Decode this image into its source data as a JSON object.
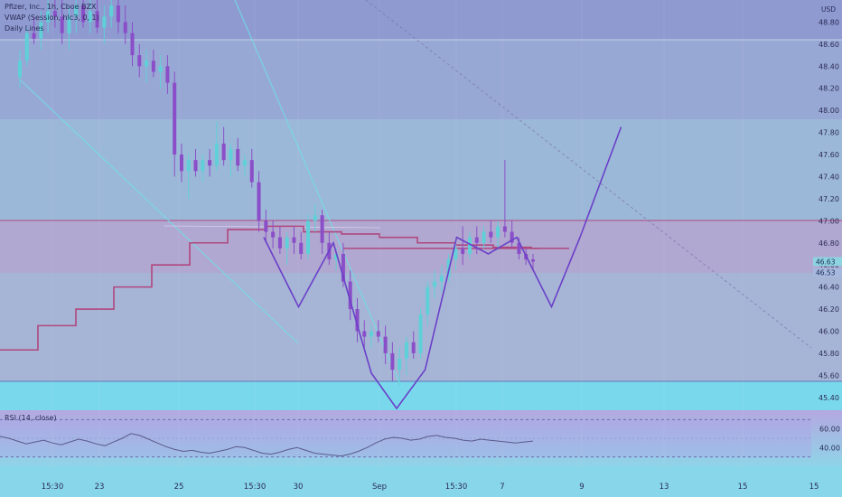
{
  "header": {
    "title_line": "Pfizer, Inc., 1h, Cboe BZX",
    "indicator_vwap": "VWAP (Session, hlc3, 0, 1)",
    "indicator_daily": "Daily Lines",
    "currency": "USD"
  },
  "rsi_panel": {
    "label": "RSI (14, close)",
    "ticks": [
      "60.00",
      "40.00"
    ]
  },
  "price_tags": [
    "46.63",
    "46.53"
  ],
  "colors": {
    "band_top": "#8e9ad0",
    "band_upper": "#98a8d4",
    "band_mid": "#9cb8d8",
    "band_lower": "#9cc2dc",
    "band_pink": "#b0a8d0",
    "rsi_bg": "#b4a8e0",
    "accent_purple": "#7c4fd0",
    "candle_up": "#5fd0d8",
    "candle_down": "#8a4ec8",
    "vwap": "#b0477e",
    "pattern_line": "#6a3fc8",
    "trend_cyan": "#6fe0e8"
  },
  "chart_data": {
    "type": "candlestick",
    "symbol": "Pfizer, Inc., 1h, Cboe BZX",
    "y_axis": {
      "ticks": [
        "48.80",
        "48.60",
        "48.40",
        "48.20",
        "48.00",
        "47.80",
        "47.60",
        "47.40",
        "47.20",
        "47.00",
        "46.80",
        "46.60",
        "46.40",
        "46.20",
        "46.00",
        "45.80",
        "45.60",
        "45.40"
      ],
      "range": [
        45.3,
        49.0
      ]
    },
    "x_axis": {
      "ticks": [
        "15:30",
        "23",
        "25",
        "15:30",
        "30",
        "Sep",
        "15:30",
        "7",
        "9",
        "13",
        "15"
      ]
    },
    "candles": [
      [
        48.3,
        48.55,
        48.2,
        48.45
      ],
      [
        48.45,
        48.75,
        48.4,
        48.7
      ],
      [
        48.7,
        48.85,
        48.6,
        48.65
      ],
      [
        48.65,
        48.9,
        48.55,
        48.8
      ],
      [
        48.8,
        49.0,
        48.7,
        48.9
      ],
      [
        48.9,
        49.0,
        48.75,
        48.85
      ],
      [
        48.85,
        49.0,
        48.6,
        48.7
      ],
      [
        48.7,
        48.95,
        48.55,
        48.85
      ],
      [
        48.85,
        49.0,
        48.7,
        48.95
      ],
      [
        48.95,
        49.0,
        48.75,
        48.8
      ],
      [
        48.8,
        49.0,
        48.7,
        48.9
      ],
      [
        48.9,
        49.0,
        48.7,
        48.75
      ],
      [
        48.75,
        48.95,
        48.6,
        48.85
      ],
      [
        48.85,
        49.0,
        48.75,
        48.95
      ],
      [
        48.95,
        49.0,
        48.7,
        48.8
      ],
      [
        48.8,
        48.95,
        48.6,
        48.7
      ],
      [
        48.7,
        48.8,
        48.4,
        48.5
      ],
      [
        48.5,
        48.6,
        48.3,
        48.4
      ],
      [
        48.4,
        48.55,
        48.25,
        48.45
      ],
      [
        48.45,
        48.55,
        48.3,
        48.35
      ],
      [
        48.35,
        48.5,
        48.2,
        48.4
      ],
      [
        48.4,
        48.5,
        48.15,
        48.25
      ],
      [
        48.25,
        48.35,
        47.4,
        47.6
      ],
      [
        47.6,
        47.7,
        47.35,
        47.45
      ],
      [
        47.45,
        47.6,
        47.2,
        47.55
      ],
      [
        47.55,
        47.65,
        47.4,
        47.45
      ],
      [
        47.45,
        47.6,
        47.35,
        47.55
      ],
      [
        47.55,
        47.65,
        47.4,
        47.5
      ],
      [
        47.5,
        47.9,
        47.45,
        47.7
      ],
      [
        47.7,
        47.85,
        47.5,
        47.55
      ],
      [
        47.55,
        47.7,
        47.4,
        47.65
      ],
      [
        47.65,
        47.75,
        47.45,
        47.5
      ],
      [
        47.5,
        47.6,
        47.4,
        47.55
      ],
      [
        47.55,
        47.65,
        47.3,
        47.35
      ],
      [
        47.35,
        47.45,
        46.9,
        47.0
      ],
      [
        47.0,
        47.1,
        46.8,
        46.9
      ],
      [
        46.9,
        47.0,
        46.75,
        46.85
      ],
      [
        46.85,
        46.95,
        46.7,
        46.75
      ],
      [
        46.75,
        46.9,
        46.6,
        46.85
      ],
      [
        46.85,
        46.95,
        46.7,
        46.8
      ],
      [
        46.8,
        46.9,
        46.65,
        46.7
      ],
      [
        46.7,
        47.05,
        46.65,
        47.0
      ],
      [
        47.0,
        47.15,
        46.9,
        47.05
      ],
      [
        47.05,
        47.1,
        46.7,
        46.8
      ],
      [
        46.8,
        46.9,
        46.6,
        46.65
      ],
      [
        46.65,
        46.75,
        46.55,
        46.7
      ],
      [
        46.7,
        46.8,
        46.4,
        46.45
      ],
      [
        46.45,
        46.55,
        46.1,
        46.2
      ],
      [
        46.2,
        46.3,
        45.9,
        46.0
      ],
      [
        46.0,
        46.1,
        45.85,
        45.95
      ],
      [
        45.95,
        46.05,
        45.85,
        46.0
      ],
      [
        46.0,
        46.1,
        45.9,
        45.95
      ],
      [
        45.95,
        46.05,
        45.7,
        45.8
      ],
      [
        45.8,
        45.9,
        45.55,
        45.65
      ],
      [
        45.65,
        45.85,
        45.5,
        45.75
      ],
      [
        45.75,
        45.95,
        45.6,
        45.9
      ],
      [
        45.9,
        46.0,
        45.75,
        45.8
      ],
      [
        45.8,
        46.2,
        45.75,
        46.15
      ],
      [
        46.15,
        46.45,
        46.05,
        46.4
      ],
      [
        46.4,
        46.55,
        46.3,
        46.45
      ],
      [
        46.45,
        46.6,
        46.35,
        46.5
      ],
      [
        46.5,
        46.7,
        46.45,
        46.65
      ],
      [
        46.65,
        46.8,
        46.55,
        46.75
      ],
      [
        46.75,
        46.95,
        46.6,
        46.7
      ],
      [
        46.7,
        46.9,
        46.65,
        46.85
      ],
      [
        46.85,
        46.95,
        46.7,
        46.8
      ],
      [
        46.8,
        46.95,
        46.75,
        46.9
      ],
      [
        46.9,
        47.0,
        46.8,
        46.85
      ],
      [
        46.85,
        47.0,
        46.75,
        46.95
      ],
      [
        46.95,
        47.55,
        46.85,
        46.9
      ],
      [
        46.9,
        47.0,
        46.75,
        46.8
      ],
      [
        46.8,
        46.85,
        46.65,
        46.7
      ],
      [
        46.7,
        46.75,
        46.6,
        46.65
      ],
      [
        46.65,
        46.7,
        46.55,
        46.63
      ]
    ],
    "vwap_levels": [
      45.83,
      46.05,
      46.2,
      46.4,
      46.6,
      46.8,
      46.92,
      46.95,
      46.9,
      46.88,
      46.85,
      46.8,
      46.78,
      46.76,
      46.75
    ],
    "pattern_points": [
      [
        0,
        46.85
      ],
      [
        0.55,
        46.22
      ],
      [
        1.1,
        46.8
      ],
      [
        1.7,
        45.62
      ],
      [
        2.1,
        45.3
      ],
      [
        2.55,
        45.65
      ],
      [
        3.05,
        46.85
      ],
      [
        3.55,
        46.7
      ],
      [
        4.0,
        46.85
      ],
      [
        4.55,
        46.22
      ],
      [
        5.0,
        46.85
      ],
      [
        5.65,
        47.85
      ]
    ],
    "rsi": {
      "levels": [
        70,
        30
      ],
      "values": [
        52,
        50,
        47,
        44,
        46,
        48,
        45,
        43,
        46,
        49,
        47,
        44,
        42,
        46,
        50,
        55,
        53,
        49,
        45,
        41,
        38,
        36,
        37,
        35,
        34,
        36,
        38,
        41,
        40,
        37,
        34,
        33,
        35,
        38,
        40,
        37,
        34,
        33,
        32,
        31,
        33,
        36,
        40,
        45,
        49,
        51,
        50,
        48,
        49,
        52,
        53,
        51,
        50,
        48,
        47,
        49,
        48,
        47,
        46,
        45,
        46,
        47
      ]
    }
  }
}
